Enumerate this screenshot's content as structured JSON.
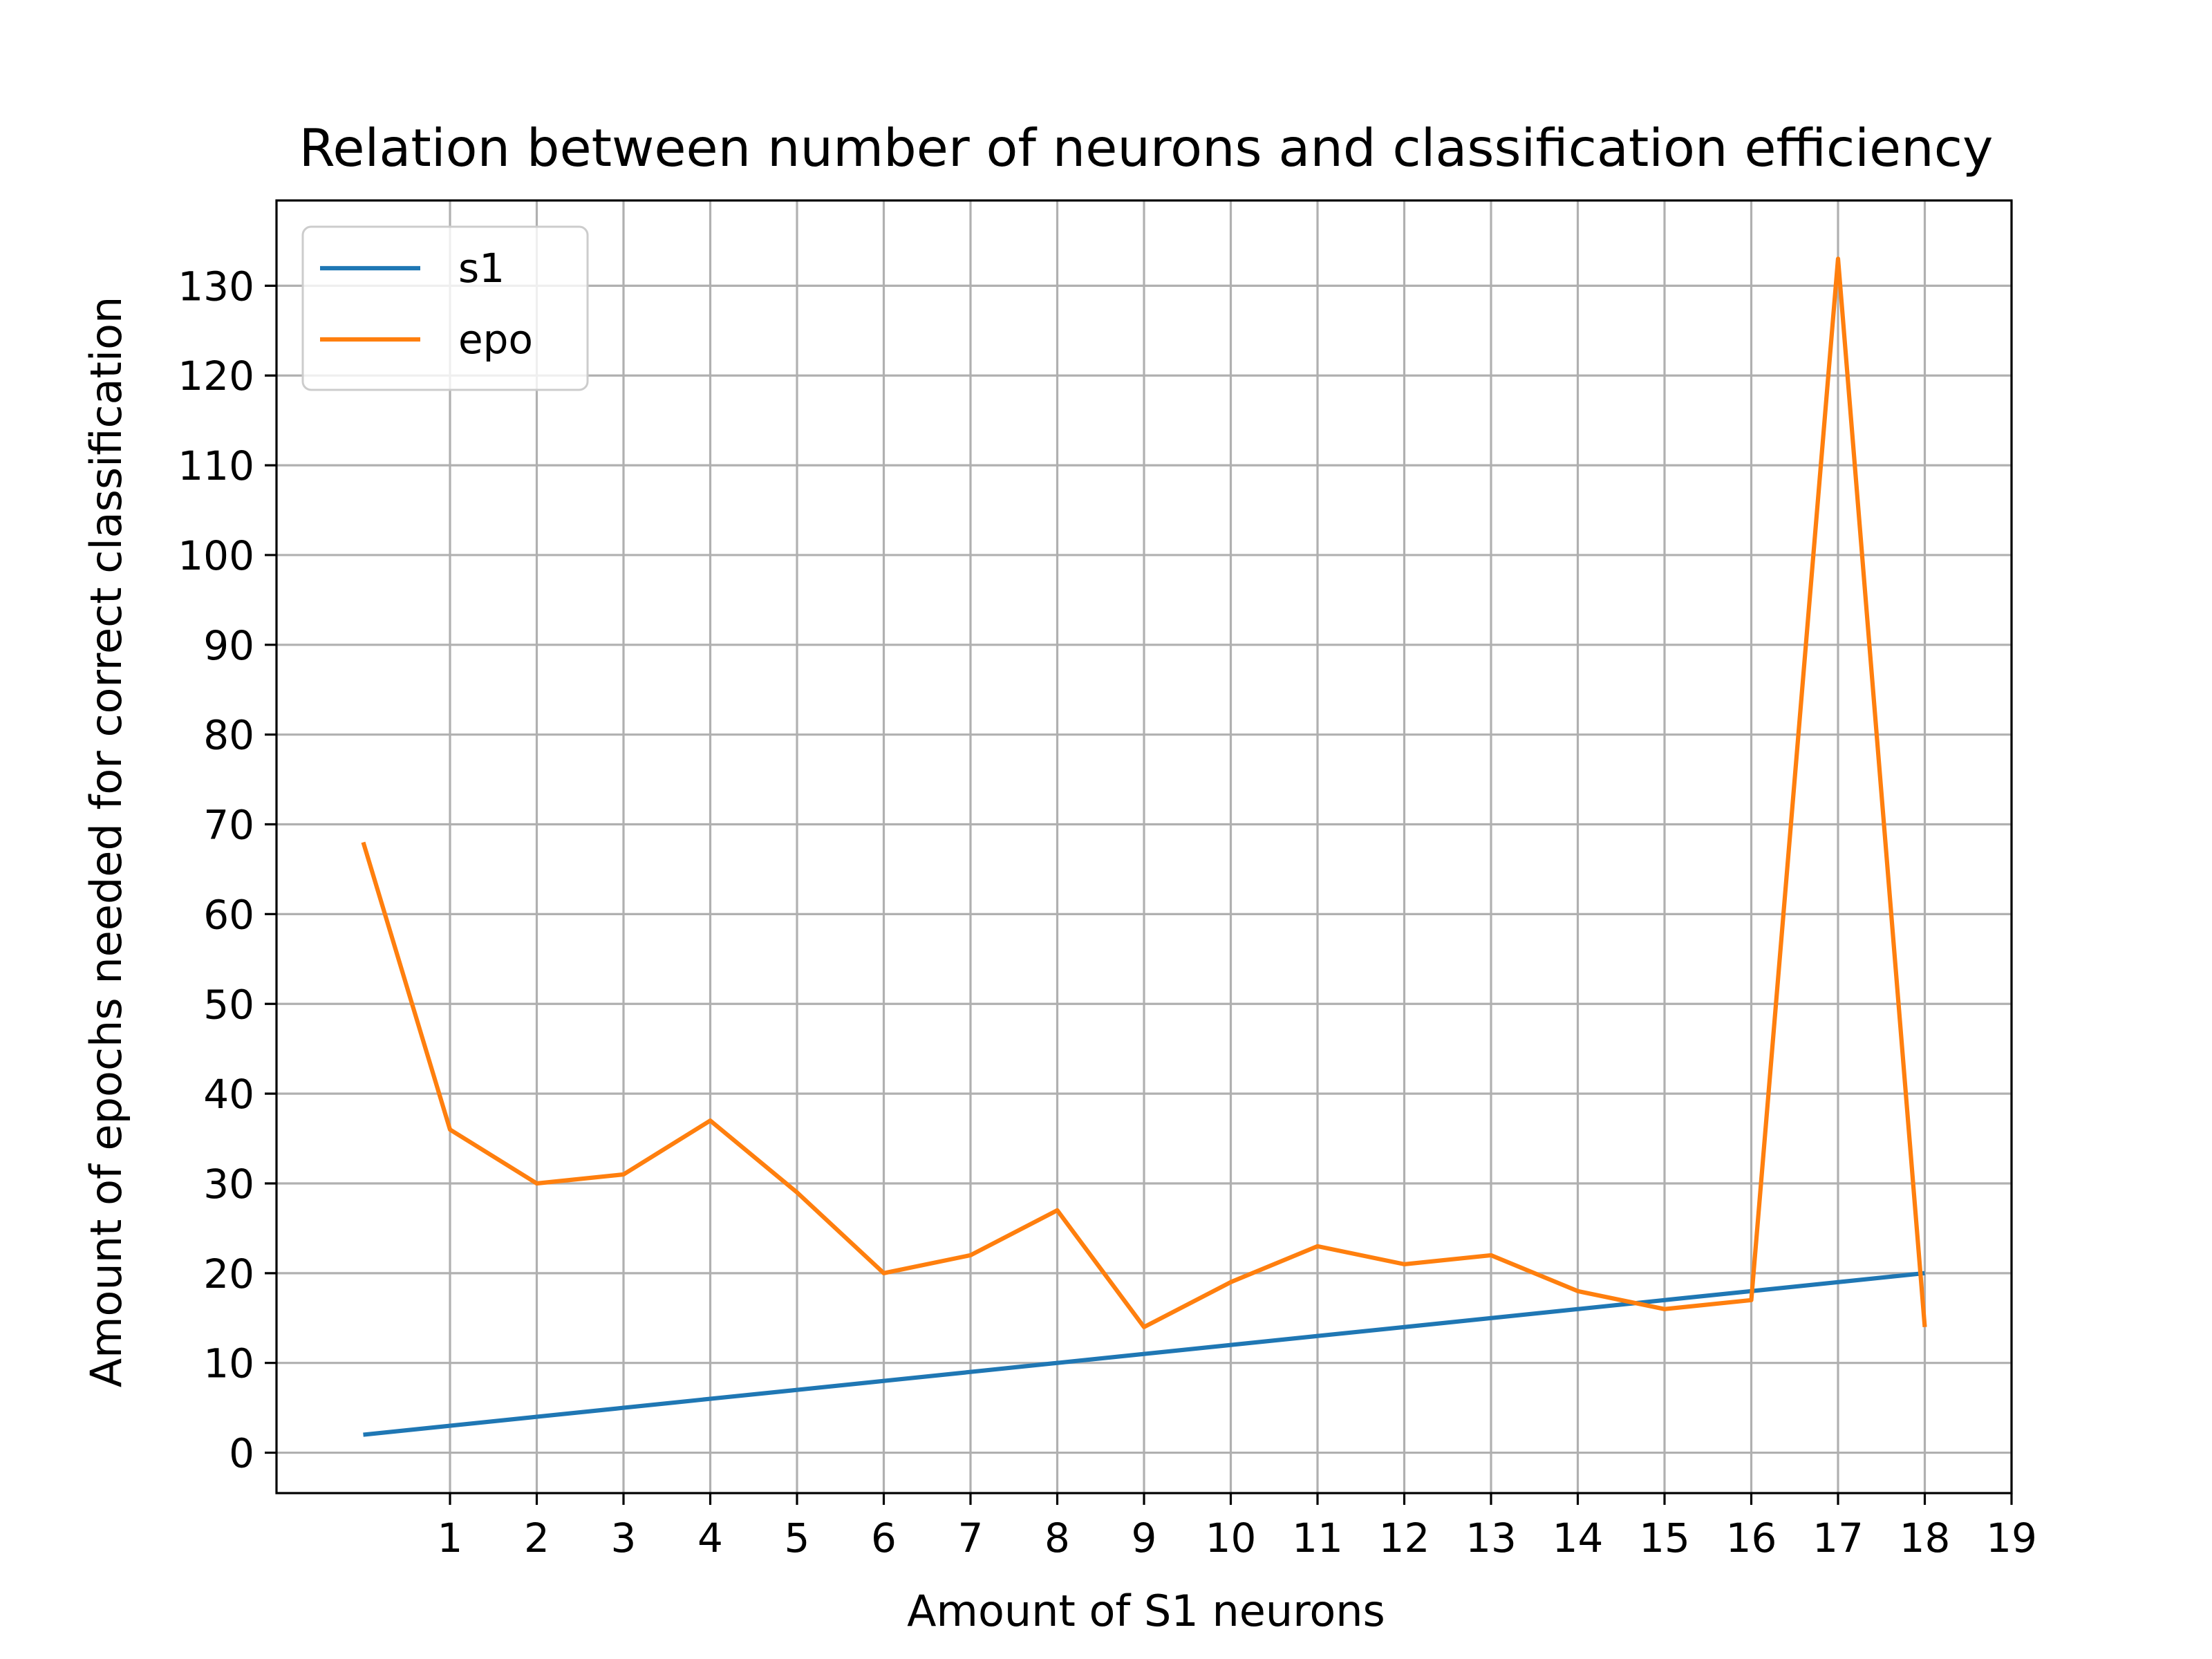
{
  "chart_data": {
    "type": "line",
    "title": "Relation between number of neurons and classification efficiency",
    "xlabel": "Amount of S1 neurons",
    "ylabel": "Amount of epochs needed for correct classification",
    "xlim": [
      -1.0,
      19
    ],
    "ylim": [
      -4.5,
      139.5
    ],
    "xticks": [
      1,
      2,
      3,
      4,
      5,
      6,
      7,
      8,
      9,
      10,
      11,
      12,
      13,
      14,
      15,
      16,
      17,
      18,
      19
    ],
    "yticks": [
      0,
      10,
      20,
      30,
      40,
      50,
      60,
      70,
      80,
      90,
      100,
      110,
      120,
      130
    ],
    "grid": true,
    "legend_position": "upper-left",
    "x": [
      0,
      1,
      2,
      3,
      4,
      5,
      6,
      7,
      8,
      9,
      10,
      11,
      12,
      13,
      14,
      15,
      16,
      17,
      18
    ],
    "series": [
      {
        "name": "s1",
        "color": "#1f77b4",
        "values": [
          2,
          3,
          4,
          5,
          6,
          7,
          8,
          9,
          10,
          11,
          12,
          13,
          14,
          15,
          16,
          17,
          18,
          19,
          20
        ]
      },
      {
        "name": "epo",
        "color": "#ff7f0e",
        "values": [
          68,
          36,
          30,
          31,
          37,
          29,
          20,
          22,
          27,
          14,
          19,
          23,
          21,
          22,
          18,
          16,
          17,
          133,
          14
        ]
      }
    ]
  }
}
